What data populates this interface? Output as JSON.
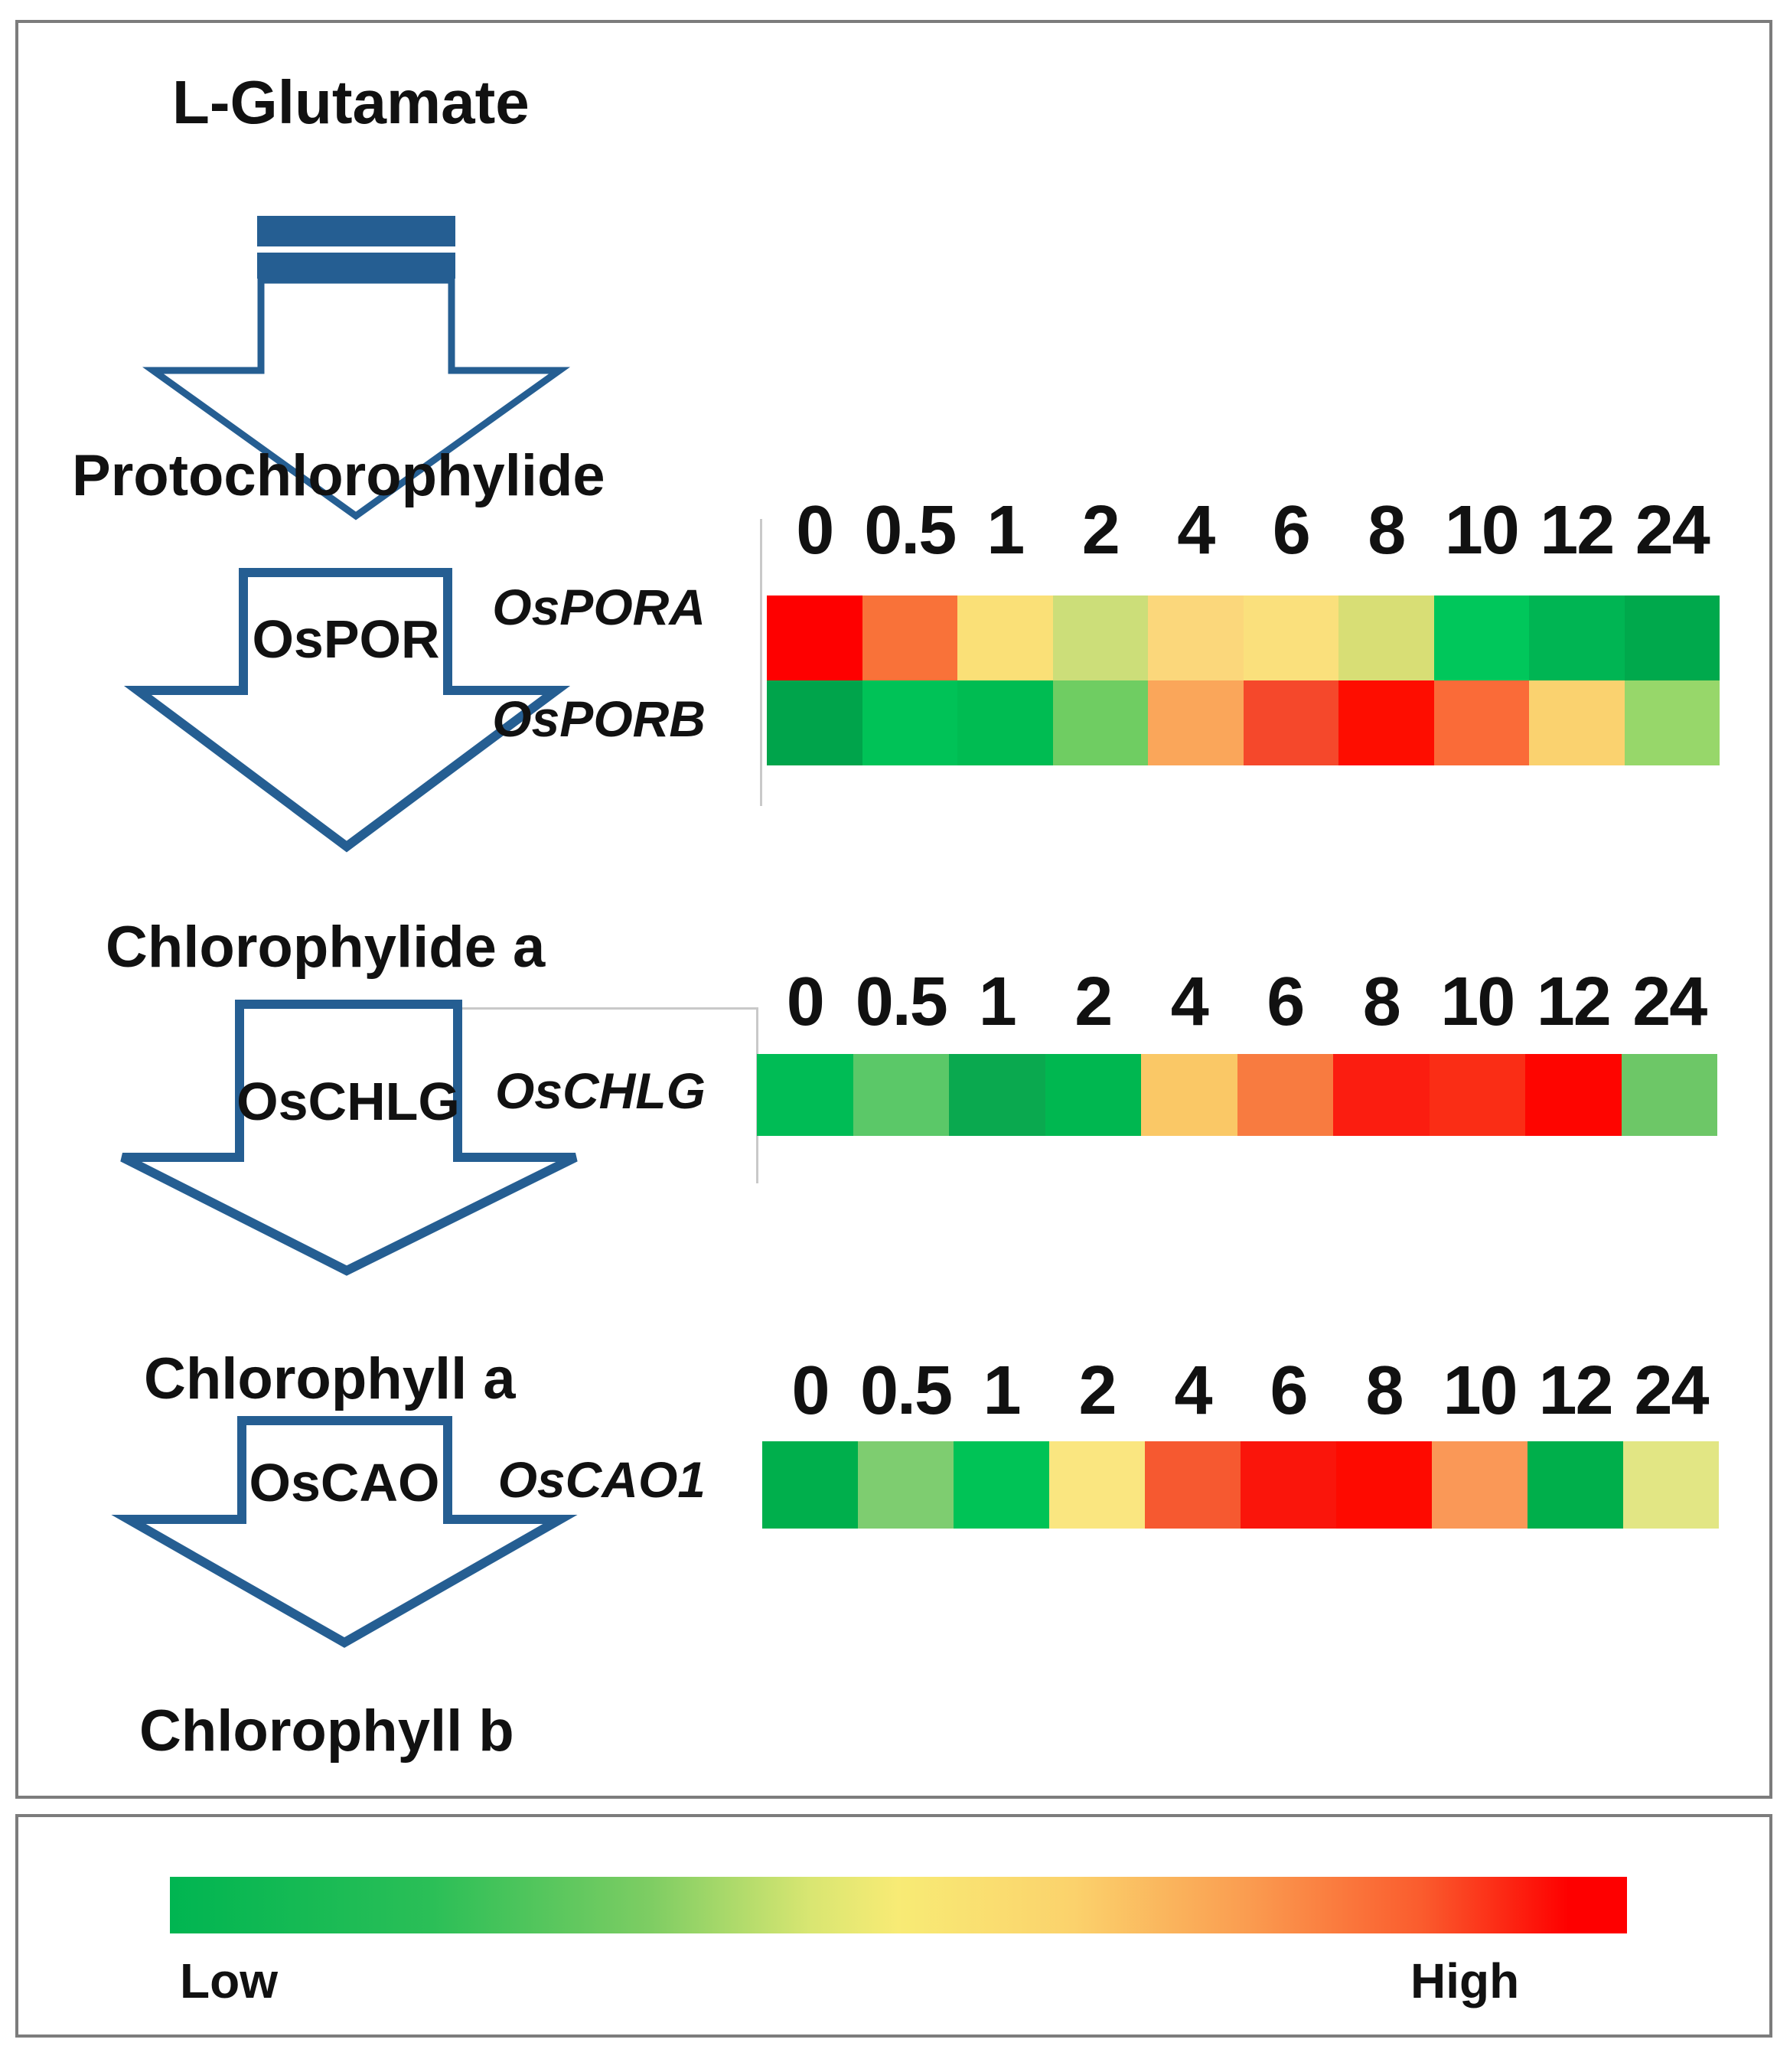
{
  "pathway": {
    "nodes": [
      "L-Glutamate",
      "Protochlorophylide",
      "Chlorophylide a",
      "Chlorophyll a",
      "Chlorophyll b"
    ],
    "enzymes": [
      "OsPOR",
      "OsCHLG",
      "OsCAO"
    ]
  },
  "legend": {
    "low": "Low",
    "high": "High"
  },
  "colors": {
    "arrow_blue": "#255E92",
    "panel_border": "#7c7c7c",
    "axis_gray": "#c9c9c9",
    "scale_low": "#00B551",
    "scale_mid": "#F8EB75",
    "scale_high": "#FE0000"
  },
  "chart_data": {
    "type": "heatmap",
    "title": "Chlorophyll biosynthesis pathway gene expression time course",
    "timepoints": [
      "0",
      "0.5",
      "1",
      "2",
      "4",
      "6",
      "8",
      "10",
      "12",
      "24"
    ],
    "legend_position": "bottom",
    "scale": {
      "label_low": "Low",
      "label_high": "High",
      "low_color": "#00B551",
      "high_color": "#FE0000"
    },
    "heatmaps": [
      {
        "step": "Protochlorophylide -> Chlorophylide a (OsPOR)",
        "rows": [
          {
            "gene": "OsPORA",
            "colors": [
              "#FE0000",
              "#F97239",
              "#FAE077",
              "#CCDE79",
              "#FBD77B",
              "#FAE07C",
              "#D8DE75",
              "#00C75B",
              "#00B553",
              "#00A94C"
            ],
            "levels": [
              1.0,
              0.85,
              0.55,
              0.45,
              0.55,
              0.55,
              0.45,
              0.15,
              0.12,
              0.08
            ]
          },
          {
            "gene": "OsPORB",
            "colors": [
              "#00A44B",
              "#00C257",
              "#00BC52",
              "#6FCD62",
              "#FAA65A",
              "#F5482B",
              "#FE0D00",
              "#FA6B38",
              "#FAD26F",
              "#97D76A"
            ],
            "levels": [
              0.08,
              0.15,
              0.15,
              0.25,
              0.7,
              0.9,
              1.0,
              0.85,
              0.6,
              0.3
            ]
          }
        ]
      },
      {
        "step": "Chlorophylide a -> Chlorophyll a (OsCHLG)",
        "rows": [
          {
            "gene": "OsCHLG",
            "colors": [
              "#00BC55",
              "#5BC868",
              "#0AA94F",
              "#00B750",
              "#FAC866",
              "#F87B40",
              "#FB1D10",
              "#FA2D15",
              "#FE0500",
              "#6DC767"
            ],
            "levels": [
              0.15,
              0.25,
              0.08,
              0.15,
              0.6,
              0.8,
              0.95,
              0.95,
              1.0,
              0.28
            ]
          }
        ]
      },
      {
        "step": "Chlorophyll a -> Chlorophyll b (OsCAO)",
        "rows": [
          {
            "gene": "OsCAO1",
            "colors": [
              "#00AF4C",
              "#7ECD70",
              "#00C356",
              "#FAE680",
              "#F65930",
              "#FA150B",
              "#FE0A00",
              "#FA9857",
              "#00AF4B",
              "#E2E684"
            ],
            "levels": [
              0.1,
              0.3,
              0.15,
              0.5,
              0.85,
              0.97,
              1.0,
              0.7,
              0.1,
              0.45
            ]
          }
        ]
      }
    ]
  }
}
